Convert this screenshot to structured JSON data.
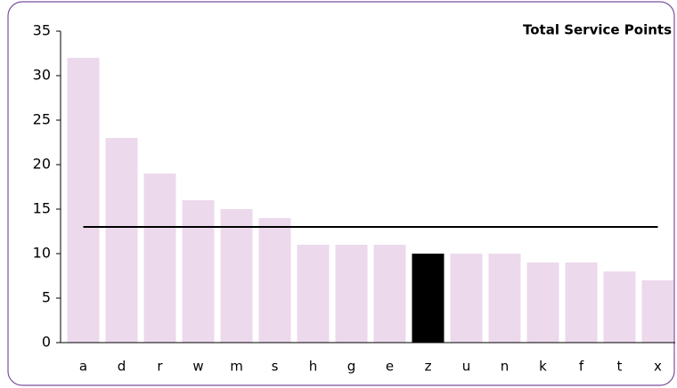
{
  "chart_data": {
    "type": "bar",
    "title": "Total Service Points",
    "categories": [
      "a",
      "d",
      "r",
      "w",
      "m",
      "s",
      "h",
      "g",
      "e",
      "z",
      "u",
      "n",
      "k",
      "f",
      "t",
      "x"
    ],
    "values": [
      32,
      23,
      19,
      16,
      15,
      14,
      11,
      11,
      11,
      10,
      10,
      10,
      9,
      9,
      8,
      7
    ],
    "colors": [
      "#ecd9ec",
      "#ecd9ec",
      "#ecd9ec",
      "#ecd9ec",
      "#ecd9ec",
      "#ecd9ec",
      "#ecd9ec",
      "#ecd9ec",
      "#ecd9ec",
      "#000000",
      "#ecd9ec",
      "#ecd9ec",
      "#ecd9ec",
      "#ecd9ec",
      "#ecd9ec",
      "#ecd9ec"
    ],
    "reference_line": 13,
    "reference_color": "#000000",
    "ylim": [
      0,
      35
    ],
    "yticks": [
      0,
      5,
      10,
      15,
      20,
      25,
      30,
      35
    ],
    "grid": false
  }
}
